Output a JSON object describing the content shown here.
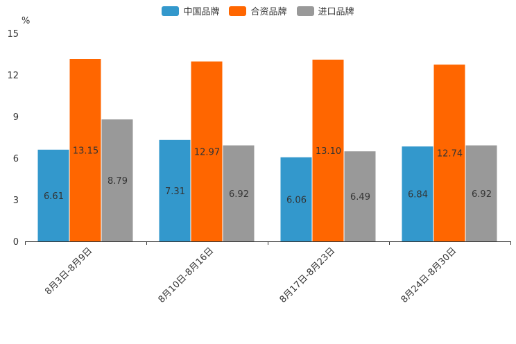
{
  "chart_data": {
    "type": "bar",
    "title": "",
    "ylabel": "%",
    "xlabel": "",
    "ylim": [
      0,
      15
    ],
    "yticks": [
      0,
      3,
      6,
      9,
      12,
      15
    ],
    "categories": [
      "8月3日-8月9日",
      "8月10日-8月16日",
      "8月17日-8月23日",
      "8月24日-8月30日"
    ],
    "series": [
      {
        "name": "中国品牌",
        "color": "#3398cc",
        "values": [
          6.61,
          7.31,
          6.06,
          6.84
        ]
      },
      {
        "name": "合资品牌",
        "color": "#ff6600",
        "values": [
          13.15,
          12.97,
          13.1,
          12.74
        ]
      },
      {
        "name": "进口品牌",
        "color": "#999999",
        "values": [
          8.79,
          6.92,
          6.49,
          6.92
        ]
      }
    ],
    "legend_position": "top-center",
    "grid": false
  }
}
